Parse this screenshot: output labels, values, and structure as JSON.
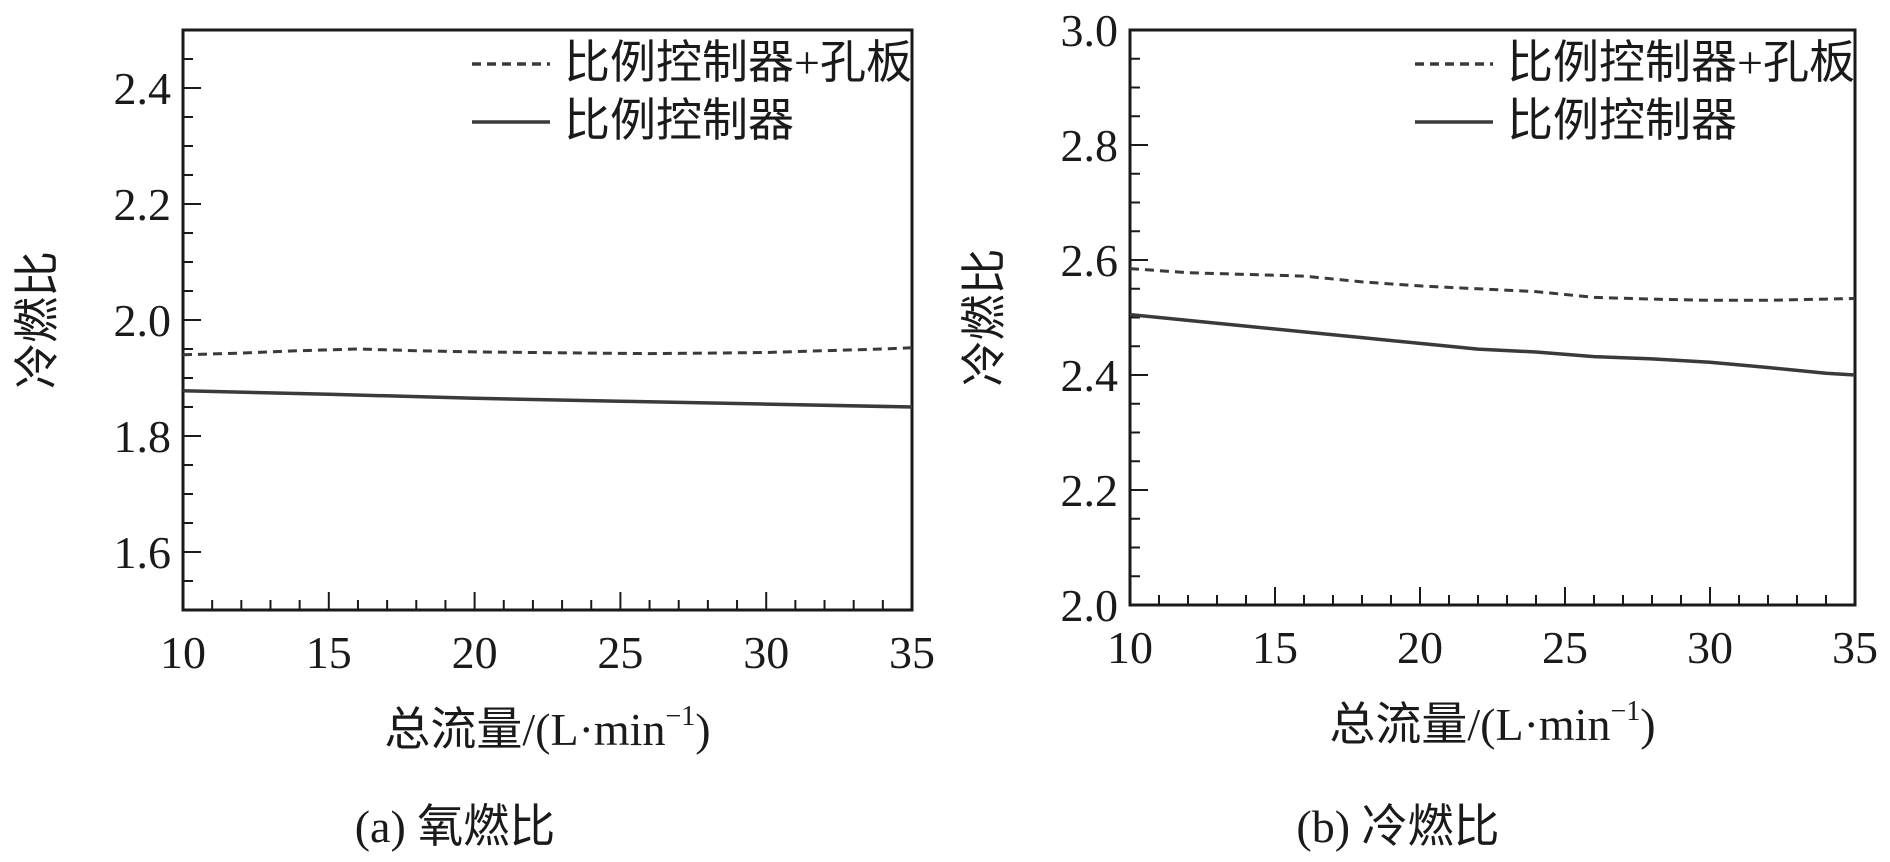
{
  "chart_data": [
    {
      "type": "line",
      "caption": "(a) 氧燃比",
      "xlabel": "总流量/(L·min",
      "xlabel_sup": "−1",
      "xlabel_close": ")",
      "ylabel": "冷燃比",
      "xlim": [
        10,
        35
      ],
      "ylim": [
        1.5,
        2.5
      ],
      "xticks": [
        10,
        15,
        20,
        25,
        30,
        35
      ],
      "yticks": [
        1.6,
        1.8,
        2.0,
        2.2,
        2.4
      ],
      "ytick_labels": [
        "1.6",
        "1.8",
        "2.0",
        "2.2",
        "2.4"
      ],
      "legend_position": "top-right",
      "series": [
        {
          "name": "比例控制器+孔板",
          "style": "dashed",
          "x": [
            10,
            12,
            14,
            16,
            18,
            20,
            22,
            24,
            26,
            28,
            30,
            32,
            34,
            35
          ],
          "y": [
            1.94,
            1.943,
            1.947,
            1.95,
            1.947,
            1.945,
            1.944,
            1.943,
            1.942,
            1.943,
            1.944,
            1.947,
            1.95,
            1.952
          ]
        },
        {
          "name": "比例控制器",
          "style": "solid",
          "x": [
            10,
            15,
            20,
            25,
            30,
            35
          ],
          "y": [
            1.878,
            1.872,
            1.865,
            1.86,
            1.855,
            1.85
          ]
        }
      ]
    },
    {
      "type": "line",
      "caption": "(b) 冷燃比",
      "xlabel": "总流量/(L·min",
      "xlabel_sup": "−1",
      "xlabel_close": ")",
      "ylabel": "冷燃比",
      "xlim": [
        10,
        35
      ],
      "ylim": [
        2.0,
        3.0
      ],
      "xticks": [
        10,
        15,
        20,
        25,
        30,
        35
      ],
      "yticks": [
        2.0,
        2.2,
        2.4,
        2.6,
        2.8,
        3.0
      ],
      "ytick_labels": [
        "2.0",
        "2.2",
        "2.4",
        "2.6",
        "2.8",
        "3.0"
      ],
      "legend_position": "top-right",
      "series": [
        {
          "name": "比例控制器+孔板",
          "style": "dashed",
          "x": [
            10,
            12,
            14,
            16,
            18,
            20,
            22,
            24,
            26,
            28,
            30,
            32,
            34,
            35
          ],
          "y": [
            2.585,
            2.578,
            2.575,
            2.572,
            2.562,
            2.555,
            2.55,
            2.545,
            2.535,
            2.532,
            2.53,
            2.53,
            2.532,
            2.533
          ]
        },
        {
          "name": "比例控制器",
          "style": "solid",
          "x": [
            10,
            12,
            14,
            16,
            18,
            20,
            22,
            24,
            26,
            28,
            30,
            32,
            34,
            35
          ],
          "y": [
            2.505,
            2.495,
            2.485,
            2.475,
            2.465,
            2.455,
            2.445,
            2.44,
            2.432,
            2.428,
            2.422,
            2.413,
            2.403,
            2.4
          ]
        }
      ]
    }
  ]
}
